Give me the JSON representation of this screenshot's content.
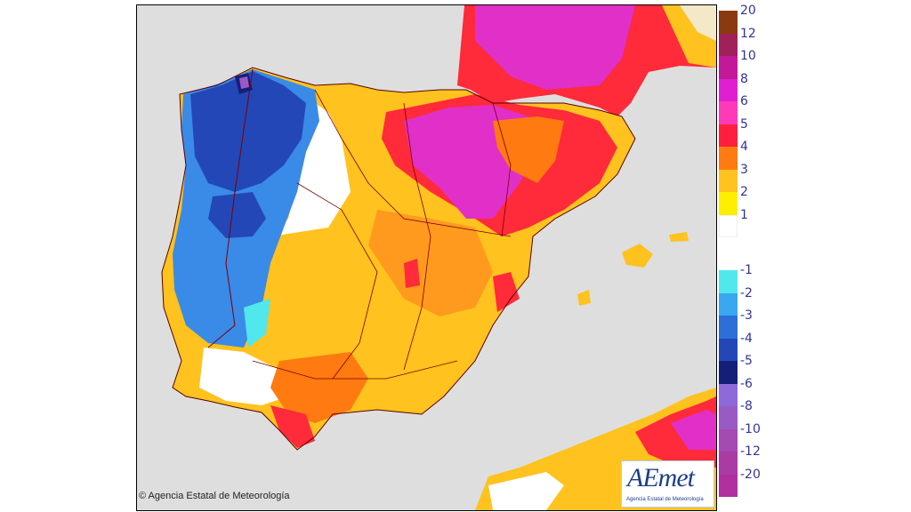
{
  "map": {
    "copyright": "© Agencia Estatal de Meteorología",
    "logo": {
      "brand": "AEmet",
      "subtitle": "Agencia Estatal de Meteorología"
    }
  },
  "legend": {
    "positive": [
      {
        "label": "20",
        "color": "#8b3a10"
      },
      {
        "label": "12",
        "color": "#a0205a"
      },
      {
        "label": "10",
        "color": "#c2189a"
      },
      {
        "label": "8",
        "color": "#e020d0"
      },
      {
        "label": "6",
        "color": "#ff3ab8"
      },
      {
        "label": "5",
        "color": "#ff1e3c"
      },
      {
        "label": "4",
        "color": "#ff7a10"
      },
      {
        "label": "3",
        "color": "#ffc21e"
      },
      {
        "label": "2",
        "color": "#ffee00"
      },
      {
        "label": "1",
        "color": "#ffffff"
      }
    ],
    "negative": [
      {
        "label": "-1",
        "color": "#50e8ec"
      },
      {
        "label": "-2",
        "color": "#3aa8f0"
      },
      {
        "label": "-3",
        "color": "#2d6fd8"
      },
      {
        "label": "-4",
        "color": "#2447b8"
      },
      {
        "label": "-5",
        "color": "#141f78"
      },
      {
        "label": "-6",
        "color": "#8d6ad8"
      },
      {
        "label": "-8",
        "color": "#9a5ac4"
      },
      {
        "label": "-10",
        "color": "#a44ab2"
      },
      {
        "label": "-12",
        "color": "#aa3aa4"
      },
      {
        "label": "-20",
        "color": "#b030a0"
      }
    ]
  }
}
